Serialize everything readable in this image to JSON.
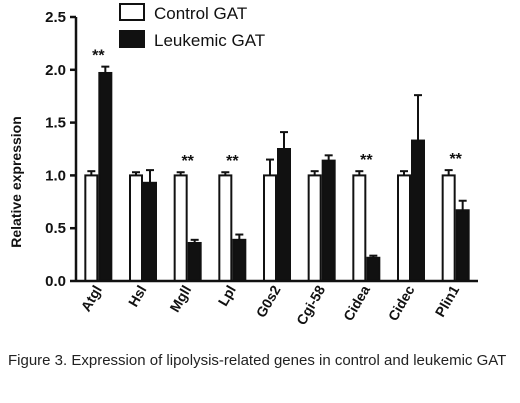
{
  "chart_data": {
    "type": "bar",
    "title": "",
    "xlabel": "",
    "ylabel": "Relative expression",
    "ylim": [
      0,
      2.5
    ],
    "yticks": [
      "0.0",
      "0.5",
      "1.0",
      "1.5",
      "2.0",
      "2.5"
    ],
    "grid": false,
    "legend_position": "top",
    "categories": [
      "Atgl",
      "Hsl",
      "Mgll",
      "Lpl",
      "G0s2",
      "Cgi-58",
      "Cidea",
      "Cidec",
      "Plin1"
    ],
    "series": [
      {
        "name": "Control GAT",
        "color": "#ffffff",
        "values": [
          1.0,
          1.0,
          1.0,
          1.0,
          1.0,
          1.0,
          1.0,
          1.0,
          1.0
        ],
        "errors": [
          0.04,
          0.03,
          0.03,
          0.03,
          0.15,
          0.04,
          0.04,
          0.04,
          0.05
        ]
      },
      {
        "name": "Leukemic GAT",
        "color": "#111111",
        "values": [
          1.97,
          0.93,
          0.36,
          0.39,
          1.25,
          1.14,
          0.22,
          1.33,
          0.67
        ],
        "errors": [
          0.06,
          0.12,
          0.03,
          0.05,
          0.16,
          0.05,
          0.02,
          0.43,
          0.09
        ]
      }
    ],
    "significance": [
      "**",
      "",
      "**",
      "**",
      "",
      "",
      "**",
      "",
      "**"
    ]
  },
  "caption": "Figure 3. Expression of lipolysis-related genes in control and leukemic GAT"
}
